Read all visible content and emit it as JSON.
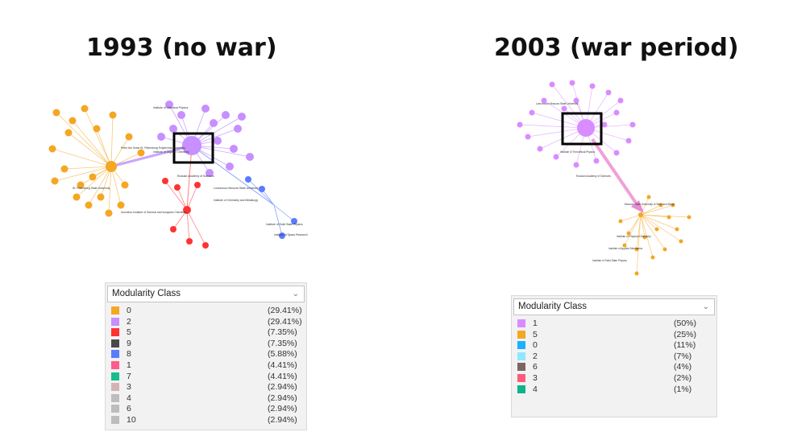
{
  "titles": {
    "left": "1993 (no war)",
    "right": "2003 (war period)"
  },
  "legend_left": {
    "dropdown_label": "Modularity Class",
    "items": [
      {
        "id": "0",
        "pct": "(29.41%)",
        "color": "#f5a623"
      },
      {
        "id": "2",
        "pct": "(29.41%)",
        "color": "#c78fff"
      },
      {
        "id": "5",
        "pct": "(7.35%)",
        "color": "#ff3333"
      },
      {
        "id": "9",
        "pct": "(7.35%)",
        "color": "#4a4a4a"
      },
      {
        "id": "8",
        "pct": "(5.88%)",
        "color": "#5a7bff"
      },
      {
        "id": "1",
        "pct": "(4.41%)",
        "color": "#ff5c8d"
      },
      {
        "id": "7",
        "pct": "(4.41%)",
        "color": "#1abc8c"
      },
      {
        "id": "3",
        "pct": "(2.94%)",
        "color": "#d6b3b3"
      },
      {
        "id": "4",
        "pct": "(2.94%)",
        "color": "#bdbdbd"
      },
      {
        "id": "6",
        "pct": "(2.94%)",
        "color": "#bdbdbd"
      },
      {
        "id": "10",
        "pct": "(2.94%)",
        "color": "#bdbdbd"
      }
    ]
  },
  "legend_right": {
    "dropdown_label": "Modularity Class",
    "items": [
      {
        "id": "1",
        "pct": "(50%)",
        "color": "#d98cff"
      },
      {
        "id": "5",
        "pct": "(25%)",
        "color": "#f5a623"
      },
      {
        "id": "0",
        "pct": "(11%)",
        "color": "#1ab2ff"
      },
      {
        "id": "2",
        "pct": "(7%)",
        "color": "#8fe8ff"
      },
      {
        "id": "6",
        "pct": "(4%)",
        "color": "#7a6663"
      },
      {
        "id": "3",
        "pct": "(2%)",
        "color": "#ff5c7a"
      },
      {
        "id": "4",
        "pct": "(1%)",
        "color": "#0fb38c"
      }
    ]
  },
  "network_left": {
    "labels": [
      "Peter the Great St. Petersburg Polytechnic University",
      "Russian Academy of Sciences",
      "Institute of Chemical Physics",
      "Kurnakov Institute of General and Inorganic Chemistry",
      "Institute of Chemistry and Metallurgy",
      "Lomonosov Moscow State University",
      "Institute of Organic Chemistry",
      "St. Petersburg State University",
      "Institute of Solid State Physics",
      "Institute of Space Research"
    ]
  },
  "network_right": {
    "labels": [
      "Lomonosov Moscow State University",
      "Russian Academy of Sciences",
      "Institute of Applied Mechanics",
      "Institute of Physical Chemistry",
      "Moscow State University of Steel and Alloys",
      "Institute of Solid State Physics",
      "Institute of Theoretical Physics"
    ]
  }
}
